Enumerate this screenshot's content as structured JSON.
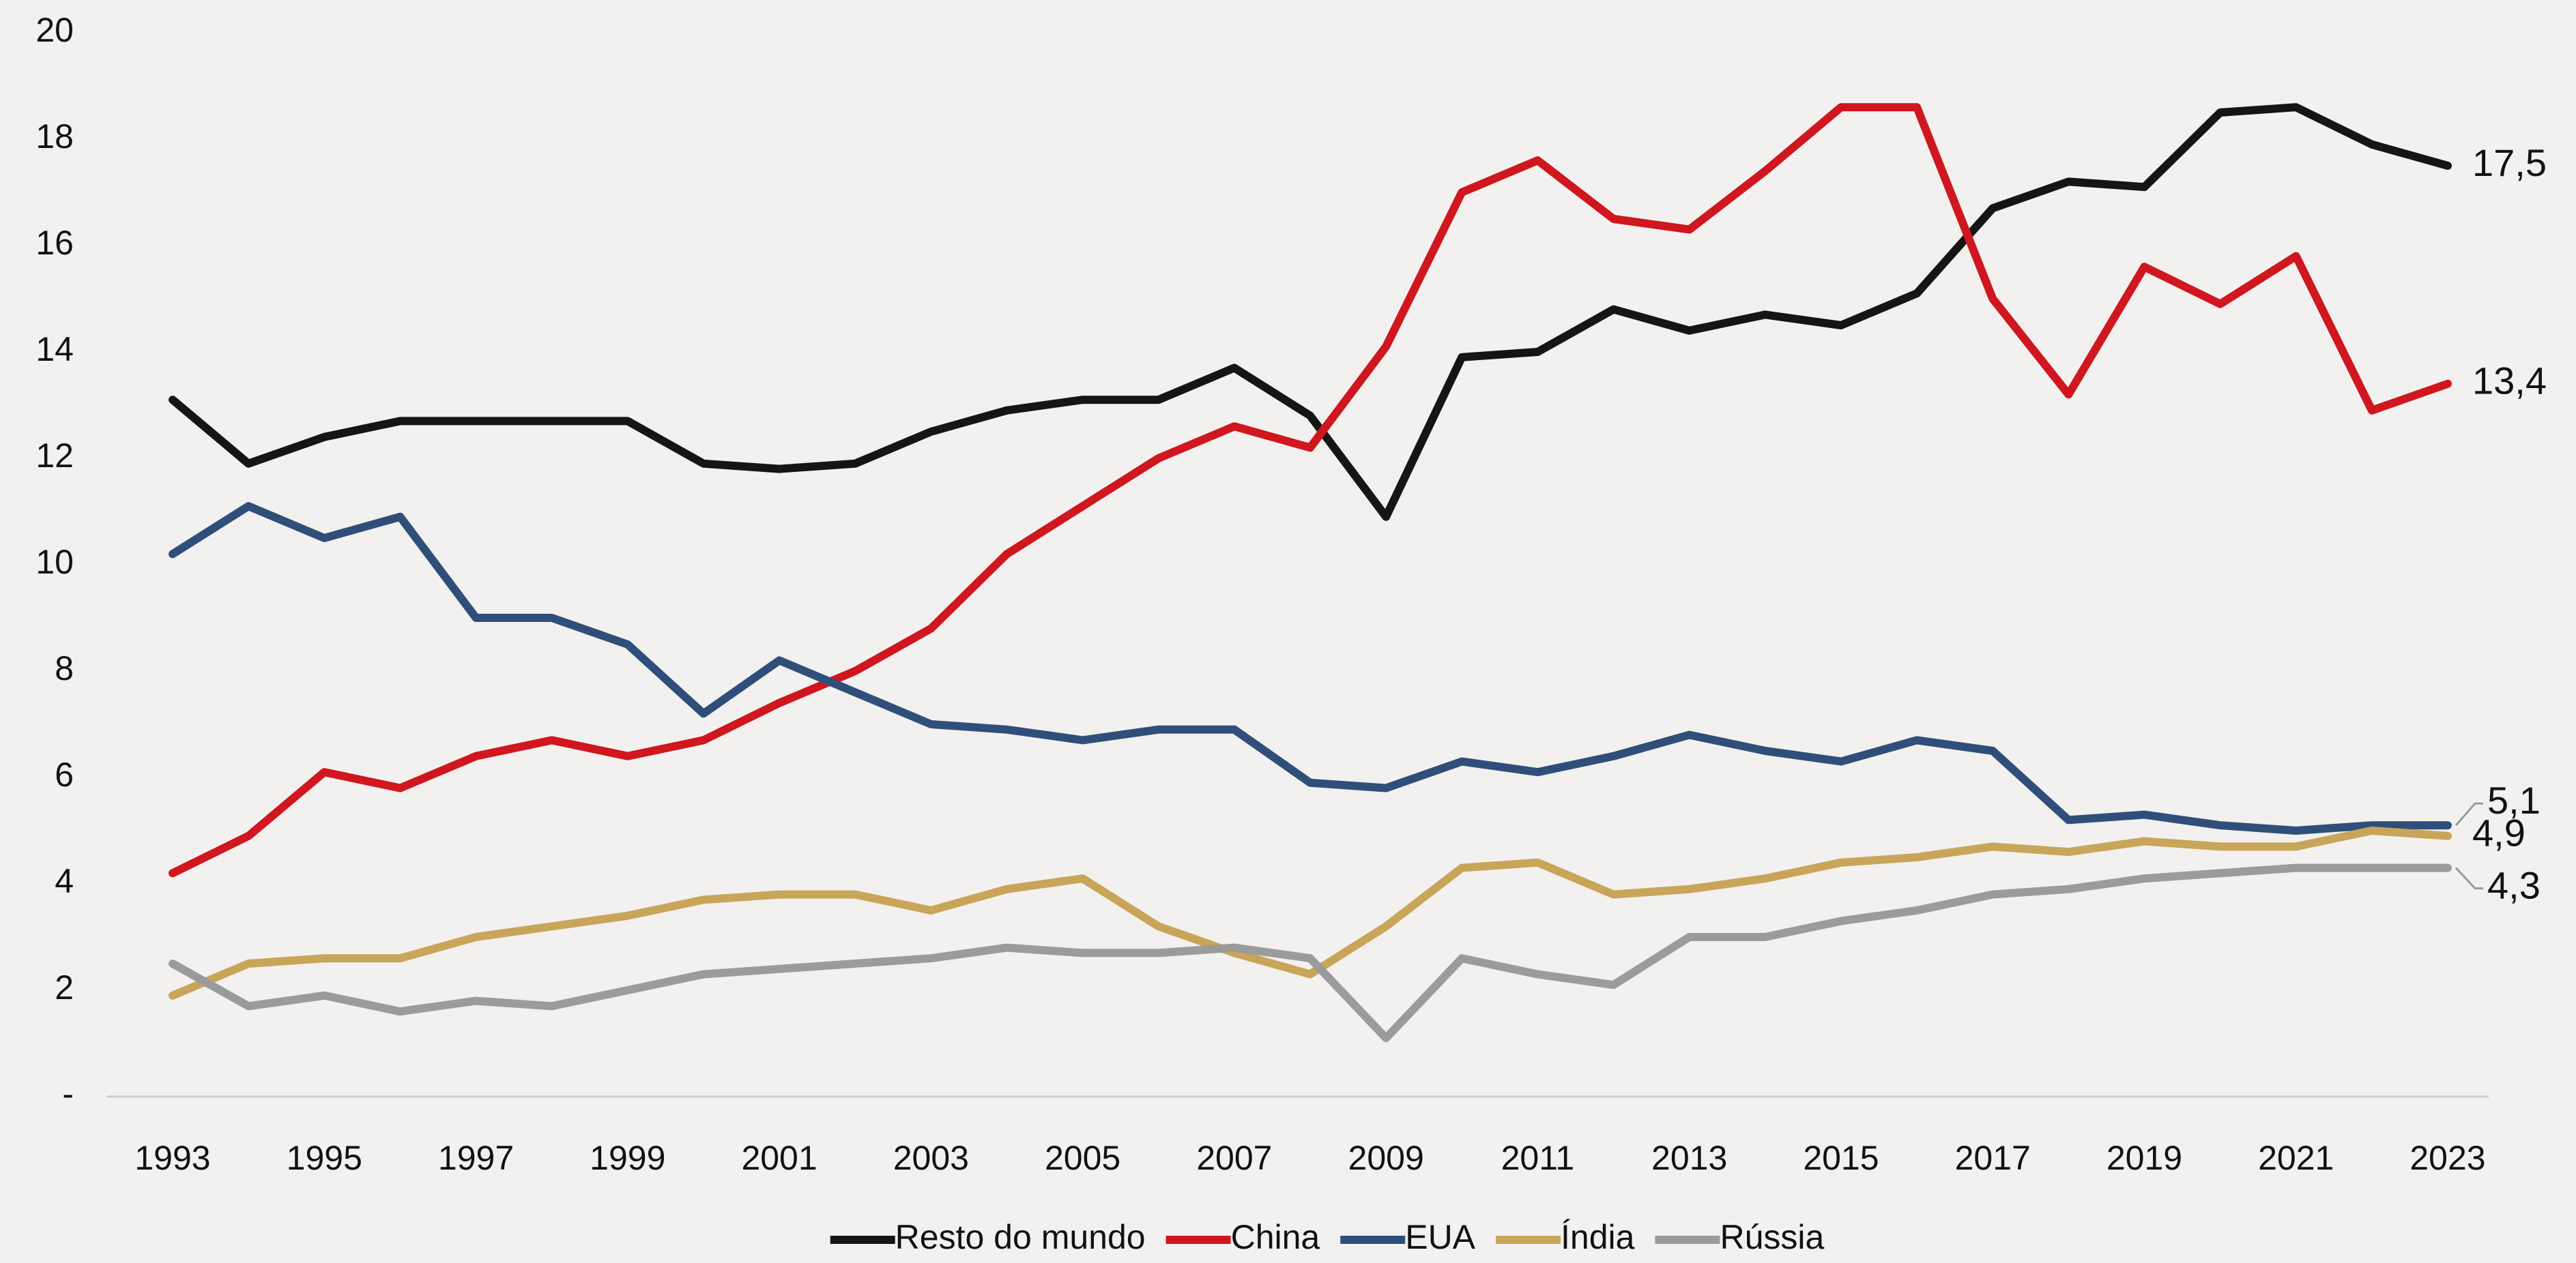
{
  "chart_data": {
    "type": "line",
    "x": [
      1993,
      1994,
      1995,
      1996,
      1997,
      1998,
      1999,
      2000,
      2001,
      2002,
      2003,
      2004,
      2005,
      2006,
      2007,
      2008,
      2009,
      2010,
      2011,
      2012,
      2013,
      2014,
      2015,
      2016,
      2017,
      2018,
      2019,
      2020,
      2021,
      2022,
      2023
    ],
    "xlim": [
      1993,
      2023
    ],
    "xticks": [
      1993,
      1995,
      1997,
      1999,
      2001,
      2003,
      2005,
      2007,
      2009,
      2011,
      2013,
      2015,
      2017,
      2019,
      2021,
      2023
    ],
    "ylim": [
      0,
      20
    ],
    "yticks": [
      {
        "value": 0,
        "label": "-"
      },
      2,
      4,
      6,
      8,
      10,
      12,
      14,
      16,
      18,
      20
    ],
    "grid": false,
    "legend": "bottom",
    "series": [
      {
        "name": "Resto do mundo",
        "color": "#151515",
        "values": [
          13.1,
          11.9,
          12.4,
          12.7,
          12.7,
          12.7,
          12.7,
          11.9,
          11.8,
          11.9,
          12.5,
          12.9,
          13.1,
          13.1,
          13.7,
          12.8,
          10.9,
          13.9,
          14.0,
          14.8,
          14.4,
          14.7,
          14.5,
          15.1,
          16.7,
          17.2,
          17.1,
          18.5,
          18.6,
          17.9,
          17.5
        ],
        "value_labels": [
          null,
          null,
          null,
          null,
          null,
          null,
          null,
          null,
          null,
          null,
          null,
          null,
          null,
          null,
          null,
          null,
          null,
          null,
          null,
          null,
          null,
          null,
          null,
          null,
          null,
          null,
          null,
          null,
          null,
          null,
          "17,5"
        ]
      },
      {
        "name": "China",
        "color": "#d0161e",
        "values": [
          4.2,
          4.9,
          6.1,
          5.8,
          6.4,
          6.7,
          6.4,
          6.7,
          7.4,
          8.0,
          8.8,
          10.2,
          11.1,
          12.0,
          12.6,
          12.2,
          14.1,
          17.0,
          17.6,
          16.5,
          16.3,
          17.4,
          18.6,
          18.6,
          15.0,
          13.2,
          15.6,
          14.9,
          15.8,
          12.9,
          13.4
        ],
        "value_labels": [
          null,
          null,
          null,
          null,
          null,
          null,
          null,
          null,
          null,
          null,
          null,
          null,
          null,
          null,
          null,
          null,
          null,
          null,
          null,
          null,
          null,
          null,
          null,
          null,
          null,
          null,
          null,
          null,
          null,
          null,
          "13,4"
        ]
      },
      {
        "name": "EUA",
        "color": "#2f4f7a",
        "values": [
          10.2,
          11.1,
          10.5,
          10.9,
          9.0,
          9.0,
          8.5,
          7.2,
          8.2,
          7.6,
          7.0,
          6.9,
          6.7,
          6.9,
          6.9,
          5.9,
          5.8,
          6.3,
          6.1,
          6.4,
          6.8,
          6.5,
          6.3,
          6.7,
          6.5,
          5.2,
          5.3,
          5.1,
          5.0,
          5.1,
          5.1
        ],
        "value_labels": [
          null,
          null,
          null,
          null,
          null,
          null,
          null,
          null,
          null,
          null,
          null,
          null,
          null,
          null,
          null,
          null,
          null,
          null,
          null,
          null,
          null,
          null,
          null,
          null,
          null,
          null,
          null,
          null,
          null,
          null,
          "5,1"
        ]
      },
      {
        "name": "Índia",
        "color": "#c9a55a",
        "values": [
          1.9,
          2.5,
          2.6,
          2.6,
          3.0,
          3.2,
          3.4,
          3.7,
          3.8,
          3.8,
          3.5,
          3.9,
          4.1,
          3.2,
          2.7,
          2.3,
          3.2,
          4.3,
          4.4,
          3.8,
          3.9,
          4.1,
          4.4,
          4.5,
          4.7,
          4.6,
          4.8,
          4.7,
          4.7,
          5.0,
          4.9
        ],
        "value_labels": [
          null,
          null,
          null,
          null,
          null,
          null,
          null,
          null,
          null,
          null,
          null,
          null,
          null,
          null,
          null,
          null,
          null,
          null,
          null,
          null,
          null,
          null,
          null,
          null,
          null,
          null,
          null,
          null,
          null,
          null,
          "4,9"
        ]
      },
      {
        "name": "Rússia",
        "color": "#9b9b9b",
        "values": [
          2.5,
          1.7,
          1.9,
          1.6,
          1.8,
          1.7,
          2.0,
          2.3,
          2.4,
          2.5,
          2.6,
          2.8,
          2.7,
          2.7,
          2.8,
          2.6,
          1.1,
          2.6,
          2.3,
          2.1,
          3.0,
          3.0,
          3.3,
          3.5,
          3.8,
          3.9,
          4.1,
          4.2,
          4.3,
          4.3,
          4.3
        ],
        "value_labels": [
          null,
          null,
          null,
          null,
          null,
          null,
          null,
          null,
          null,
          null,
          null,
          null,
          null,
          null,
          null,
          null,
          null,
          null,
          null,
          null,
          null,
          null,
          null,
          null,
          null,
          null,
          null,
          null,
          null,
          null,
          "4,3"
        ]
      }
    ]
  }
}
